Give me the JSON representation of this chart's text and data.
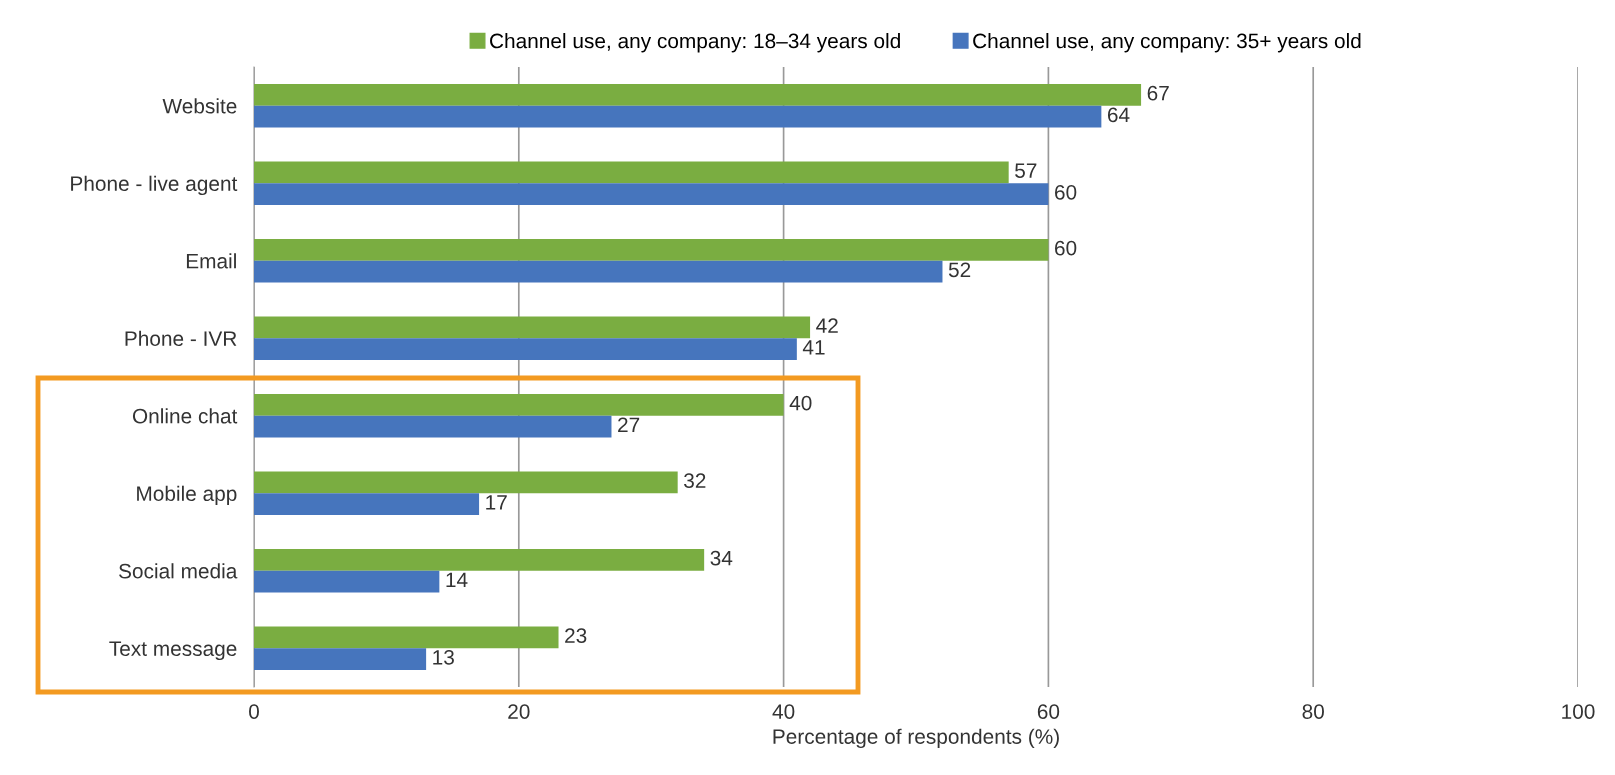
{
  "chart_data": {
    "type": "bar",
    "orientation": "horizontal",
    "xlabel": "Percentage of respondents (%)",
    "categories": [
      "Website",
      "Phone - live agent",
      "Email",
      "Phone - IVR",
      "Online chat",
      "Mobile app",
      "Social media",
      "Text message"
    ],
    "series": [
      {
        "name": "Channel use, any company: 18–34 years old",
        "color": "#7aad41",
        "values": [
          67,
          57,
          60,
          42,
          40,
          32,
          34,
          23
        ]
      },
      {
        "name": "Channel use, any company: 35+ years old",
        "color": "#4675bd",
        "values": [
          64,
          60,
          52,
          41,
          27,
          17,
          14,
          13
        ]
      }
    ],
    "xlim": [
      0,
      100
    ],
    "xticks": [
      0,
      20,
      40,
      60,
      80,
      100
    ],
    "grid": "x",
    "legend": "top",
    "data_labels": true
  }
}
